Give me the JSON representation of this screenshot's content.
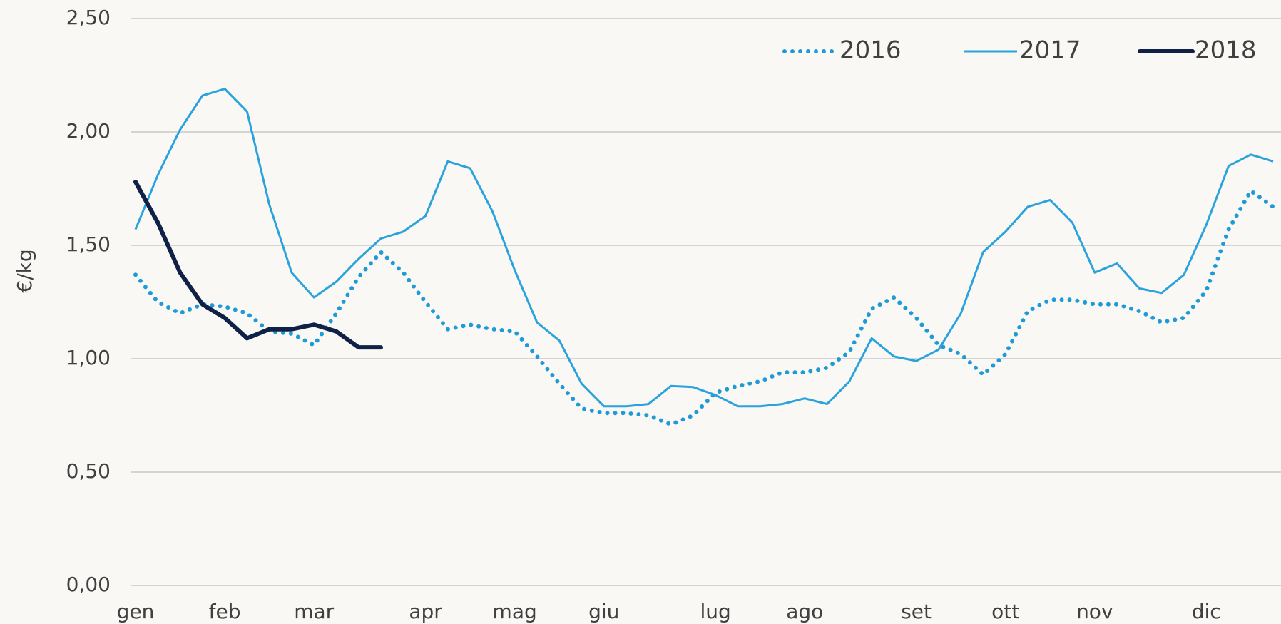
{
  "chart_data": {
    "type": "line",
    "y_label": "€/kg",
    "categories": [
      "gen",
      null,
      null,
      null,
      "feb",
      null,
      null,
      null,
      "mar",
      null,
      null,
      null,
      null,
      "apr",
      null,
      null,
      null,
      "mag",
      null,
      null,
      null,
      "giu",
      null,
      null,
      null,
      null,
      "lug",
      null,
      null,
      null,
      "ago",
      null,
      null,
      null,
      null,
      "set",
      null,
      null,
      null,
      "ott",
      null,
      null,
      null,
      "nov",
      null,
      null,
      null,
      null,
      "dic",
      null,
      null,
      null
    ],
    "series": [
      {
        "name": "2016",
        "color": "#1e9bd7",
        "line_style": "dotted",
        "values": [
          1.37,
          1.25,
          1.2,
          1.24,
          1.23,
          1.2,
          1.12,
          1.11,
          1.06,
          1.2,
          1.36,
          1.47,
          1.38,
          1.25,
          1.13,
          1.15,
          1.13,
          1.12,
          1.01,
          0.89,
          0.78,
          0.76,
          0.76,
          0.75,
          0.71,
          0.75,
          0.85,
          0.88,
          0.9,
          0.94,
          0.94,
          0.96,
          1.03,
          1.22,
          1.27,
          1.18,
          1.06,
          1.02,
          0.93,
          1.02,
          1.21,
          1.26,
          1.26,
          1.24,
          1.24,
          1.21,
          1.16,
          1.18,
          1.3,
          1.57,
          1.74,
          1.67
        ]
      },
      {
        "name": "2017",
        "color": "#2aa3dd",
        "line_style": "solid",
        "values": [
          1.57,
          1.81,
          2.01,
          2.16,
          2.19,
          2.09,
          1.68,
          1.38,
          1.27,
          1.34,
          1.44,
          1.53,
          1.56,
          1.63,
          1.87,
          1.84,
          1.65,
          1.39,
          1.16,
          1.08,
          0.89,
          0.79,
          0.79,
          0.8,
          0.88,
          0.875,
          0.84,
          0.79,
          0.79,
          0.8,
          0.825,
          0.8,
          0.9,
          1.09,
          1.01,
          0.99,
          1.04,
          1.2,
          1.47,
          1.56,
          1.67,
          1.7,
          1.6,
          1.38,
          1.42,
          1.31,
          1.29,
          1.37,
          1.59,
          1.85,
          1.9,
          1.87
        ]
      },
      {
        "name": "2018",
        "color": "#0f2147",
        "line_style": "thick",
        "values": [
          1.78,
          1.6,
          1.38,
          1.24,
          1.18,
          1.09,
          1.13,
          1.13,
          1.15,
          1.12,
          1.05,
          1.05,
          null,
          null,
          null,
          null,
          null,
          null,
          null,
          null,
          null,
          null,
          null,
          null,
          null,
          null,
          null,
          null,
          null,
          null,
          null,
          null,
          null,
          null,
          null,
          null,
          null,
          null,
          null,
          null,
          null,
          null,
          null,
          null,
          null,
          null,
          null,
          null,
          null,
          null,
          null,
          null
        ]
      }
    ],
    "ylim": [
      0,
      2.5
    ],
    "yticks": [
      {
        "value": 0,
        "label": "0,00"
      },
      {
        "value": 0.5,
        "label": "0,50"
      },
      {
        "value": 1,
        "label": "1,00"
      },
      {
        "value": 1.5,
        "label": "1,50"
      },
      {
        "value": 2,
        "label": "2,00"
      },
      {
        "value": 2.5,
        "label": "2,50"
      }
    ],
    "grid": true,
    "legend": "top-right"
  }
}
